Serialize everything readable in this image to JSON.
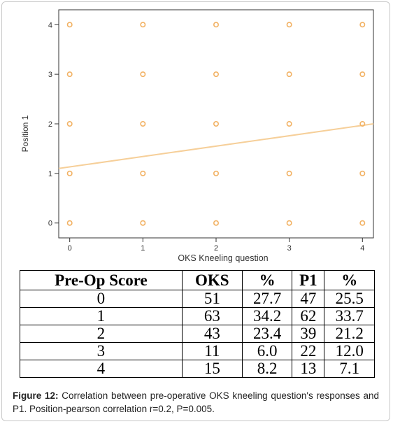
{
  "chart_data": {
    "type": "scatter",
    "xlabel": "OKS Kneeling question",
    "ylabel": "Position 1",
    "x_ticks": [
      "0",
      "1",
      "2",
      "3",
      "4"
    ],
    "y_ticks": [
      "0",
      "1",
      "2",
      "3",
      "4"
    ],
    "xlim": [
      -0.15,
      4.15
    ],
    "ylim": [
      -0.3,
      4.3
    ],
    "points": [
      {
        "x": 0,
        "y": 0
      },
      {
        "x": 1,
        "y": 0
      },
      {
        "x": 2,
        "y": 0
      },
      {
        "x": 3,
        "y": 0
      },
      {
        "x": 4,
        "y": 0
      },
      {
        "x": 0,
        "y": 1
      },
      {
        "x": 1,
        "y": 1
      },
      {
        "x": 2,
        "y": 1
      },
      {
        "x": 3,
        "y": 1
      },
      {
        "x": 4,
        "y": 1
      },
      {
        "x": 0,
        "y": 2
      },
      {
        "x": 1,
        "y": 2
      },
      {
        "x": 2,
        "y": 2
      },
      {
        "x": 3,
        "y": 2
      },
      {
        "x": 4,
        "y": 2
      },
      {
        "x": 0,
        "y": 3
      },
      {
        "x": 1,
        "y": 3
      },
      {
        "x": 2,
        "y": 3
      },
      {
        "x": 3,
        "y": 3
      },
      {
        "x": 4,
        "y": 3
      },
      {
        "x": 0,
        "y": 4
      },
      {
        "x": 1,
        "y": 4
      },
      {
        "x": 2,
        "y": 4
      },
      {
        "x": 3,
        "y": 4
      },
      {
        "x": 4,
        "y": 4
      }
    ],
    "fit_line": {
      "x": [
        -0.15,
        4.15
      ],
      "y": [
        1.1,
        2.0
      ]
    },
    "colors": {
      "point": "#f2b264",
      "line": "#f6cf99",
      "axis": "#333333",
      "tick_text": "#333333"
    }
  },
  "table": {
    "headers": [
      "Pre-Op Score",
      "OKS",
      "%",
      "P1",
      "%"
    ],
    "rows": [
      [
        "0",
        "51",
        "27.7",
        "47",
        "25.5"
      ],
      [
        "1",
        "63",
        "34.2",
        "62",
        "33.7"
      ],
      [
        "2",
        "43",
        "23.4",
        "39",
        "21.2"
      ],
      [
        "3",
        "11",
        "6.0",
        "22",
        "12.0"
      ],
      [
        "4",
        "15",
        "8.2",
        "13",
        "7.1"
      ]
    ]
  },
  "caption": {
    "figure_label": "Figure 12:",
    "text": "Correlation between pre-operative OKS kneeling question's responses and P1. Position-pearson correlation r=0.2, P=0.005."
  }
}
